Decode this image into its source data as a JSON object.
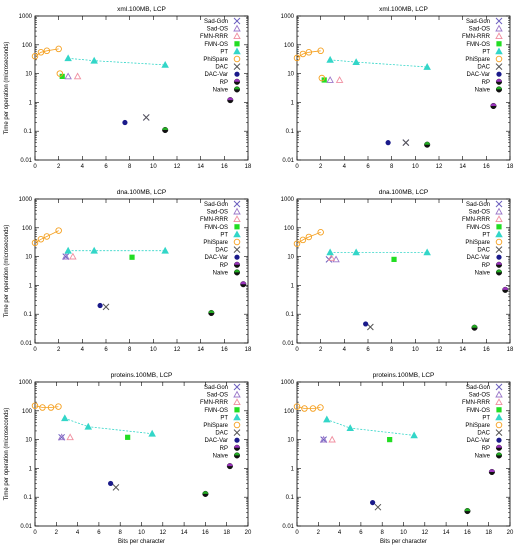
{
  "styles": {
    "Sad-Gon": {
      "color": "#6b5fbf",
      "marker": "x"
    },
    "Sad-OS": {
      "color": "#9b77c9",
      "marker": "tri-open"
    },
    "FMN-RRR": {
      "color": "#f08fa0",
      "marker": "tri-open"
    },
    "FMN-OS": {
      "color": "#22dd22",
      "marker": "square"
    },
    "PT": {
      "color": "#33d6c8",
      "marker": "tri-filled"
    },
    "PhiSpare": {
      "color": "#f5a020",
      "marker": "circle-open"
    },
    "DAC": {
      "color": "#555555",
      "marker": "x"
    },
    "DAC-Var": {
      "color": "#1a1a8a",
      "marker": "dot"
    },
    "RP": {
      "color": "#9933bb",
      "marker": "half"
    },
    "Naive": {
      "color": "#22aa22",
      "marker": "half"
    }
  },
  "legend": [
    "Sad-Gon",
    "Sad-OS",
    "FMN-RRR",
    "FMN-OS",
    "PT",
    "PhiSpare",
    "DAC",
    "DAC-Var",
    "RP",
    "Naive"
  ],
  "chart_data": [
    {
      "type": "scatter",
      "title": "xml.100MB, LCP",
      "xlabel": "",
      "ylabel": "Time per operation (microseconds)",
      "xlim": [
        0,
        18
      ],
      "xticks": [
        0,
        2,
        4,
        6,
        8,
        10,
        12,
        14,
        16,
        18
      ],
      "ylim": [
        0.01,
        1000
      ],
      "yscale": "log",
      "yticks": [
        0.01,
        0.1,
        1,
        10,
        100,
        1000
      ],
      "series": [
        {
          "name": "Sad-Gon",
          "points": [
            [
              9.4,
              0.3
            ]
          ]
        },
        {
          "name": "Sad-OS",
          "points": [
            [
              2.8,
              8
            ]
          ]
        },
        {
          "name": "FMN-RRR",
          "points": [
            [
              3.6,
              8
            ]
          ]
        },
        {
          "name": "FMN-OS",
          "points": [
            [
              2.3,
              8
            ]
          ]
        },
        {
          "name": "PT",
          "points": [
            [
              2.8,
              34
            ],
            [
              5.0,
              28
            ],
            [
              11.0,
              20
            ]
          ],
          "line": true
        },
        {
          "name": "PhiSpare",
          "points": [
            [
              0.0,
              40
            ],
            [
              0.5,
              55
            ],
            [
              1.0,
              62
            ],
            [
              2.0,
              72
            ],
            [
              2.1,
              10
            ]
          ],
          "line": true
        },
        {
          "name": "DAC",
          "points": [
            [
              9.4,
              0.3
            ]
          ]
        },
        {
          "name": "DAC-Var",
          "points": [
            [
              7.6,
              0.2
            ]
          ]
        },
        {
          "name": "RP",
          "points": [
            [
              16.5,
              1.2
            ]
          ]
        },
        {
          "name": "Naive",
          "points": [
            [
              11.0,
              0.11
            ]
          ]
        }
      ]
    },
    {
      "type": "scatter",
      "title": "xml.100MB, LCP",
      "xlabel": "",
      "ylabel": "",
      "xlim": [
        0,
        18
      ],
      "xticks": [
        0,
        2,
        4,
        6,
        8,
        10,
        12,
        14,
        16,
        18
      ],
      "ylim": [
        0.01,
        1000
      ],
      "yscale": "log",
      "yticks": [
        0.01,
        0.1,
        1,
        10,
        100,
        1000
      ],
      "series": [
        {
          "name": "Sad-Gon",
          "points": [
            [
              9.2,
              0.04
            ]
          ]
        },
        {
          "name": "Sad-OS",
          "points": [
            [
              2.8,
              6
            ]
          ]
        },
        {
          "name": "FMN-RRR",
          "points": [
            [
              3.6,
              6
            ]
          ]
        },
        {
          "name": "FMN-OS",
          "points": [
            [
              2.3,
              6
            ]
          ]
        },
        {
          "name": "PT",
          "points": [
            [
              2.8,
              30
            ],
            [
              5.0,
              25
            ],
            [
              11.0,
              17
            ]
          ],
          "line": true
        },
        {
          "name": "PhiSpare",
          "points": [
            [
              0.0,
              35
            ],
            [
              0.5,
              48
            ],
            [
              1.0,
              55
            ],
            [
              2.0,
              62
            ],
            [
              2.1,
              7
            ]
          ],
          "line": true
        },
        {
          "name": "DAC",
          "points": [
            [
              9.2,
              0.04
            ]
          ]
        },
        {
          "name": "DAC-Var",
          "points": [
            [
              7.7,
              0.04
            ]
          ]
        },
        {
          "name": "RP",
          "points": [
            [
              16.6,
              0.75
            ]
          ]
        },
        {
          "name": "Naive",
          "points": [
            [
              11.0,
              0.034
            ]
          ]
        }
      ]
    },
    {
      "type": "scatter",
      "title": "dna.100MB, LCP",
      "xlabel": "",
      "ylabel": "Time per operation (microseconds)",
      "xlim": [
        0,
        18
      ],
      "xticks": [
        0,
        2,
        4,
        6,
        8,
        10,
        12,
        14,
        16,
        18
      ],
      "ylim": [
        0.01,
        1000
      ],
      "yscale": "log",
      "yticks": [
        0.01,
        0.1,
        1,
        10,
        100,
        1000
      ],
      "series": [
        {
          "name": "Sad-Gon",
          "points": [
            [
              2.6,
              10
            ]
          ]
        },
        {
          "name": "Sad-OS",
          "points": [
            [
              2.6,
              10
            ]
          ]
        },
        {
          "name": "FMN-RRR",
          "points": [
            [
              3.2,
              10
            ]
          ]
        },
        {
          "name": "FMN-OS",
          "points": [
            [
              8.2,
              9.5
            ]
          ]
        },
        {
          "name": "PT",
          "points": [
            [
              2.8,
              16
            ],
            [
              5.0,
              16
            ],
            [
              11.0,
              16
            ]
          ],
          "line": true
        },
        {
          "name": "PhiSpare",
          "points": [
            [
              0.0,
              30
            ],
            [
              0.5,
              40
            ],
            [
              1.0,
              50
            ],
            [
              2.0,
              80
            ]
          ],
          "line": true
        },
        {
          "name": "DAC",
          "points": [
            [
              6.0,
              0.18
            ]
          ]
        },
        {
          "name": "DAC-Var",
          "points": [
            [
              5.5,
              0.2
            ]
          ]
        },
        {
          "name": "RP",
          "points": [
            [
              17.6,
              1.1
            ]
          ]
        },
        {
          "name": "Naive",
          "points": [
            [
              14.9,
              0.11
            ]
          ]
        }
      ]
    },
    {
      "type": "scatter",
      "title": "dna.100MB, LCP",
      "xlabel": "",
      "ylabel": "",
      "xlim": [
        0,
        18
      ],
      "xticks": [
        0,
        2,
        4,
        6,
        8,
        10,
        12,
        14,
        16,
        18
      ],
      "ylim": [
        0.01,
        1000
      ],
      "yscale": "log",
      "yticks": [
        0.01,
        0.1,
        1,
        10,
        100,
        1000
      ],
      "series": [
        {
          "name": "Sad-Gon",
          "points": [
            [
              2.7,
              8
            ]
          ]
        },
        {
          "name": "Sad-OS",
          "points": [
            [
              3.3,
              8
            ]
          ]
        },
        {
          "name": "FMN-RRR",
          "points": [
            [
              2.9,
              9
            ]
          ]
        },
        {
          "name": "FMN-OS",
          "points": [
            [
              8.2,
              8
            ]
          ]
        },
        {
          "name": "PT",
          "points": [
            [
              2.8,
              14
            ],
            [
              5.0,
              14
            ],
            [
              11.0,
              14
            ]
          ],
          "line": true
        },
        {
          "name": "PhiSpare",
          "points": [
            [
              0.0,
              28
            ],
            [
              0.5,
              38
            ],
            [
              1.0,
              48
            ],
            [
              2.0,
              70
            ]
          ],
          "line": true
        },
        {
          "name": "DAC",
          "points": [
            [
              6.2,
              0.036
            ]
          ]
        },
        {
          "name": "DAC-Var",
          "points": [
            [
              5.8,
              0.046
            ]
          ]
        },
        {
          "name": "RP",
          "points": [
            [
              17.6,
              0.7
            ]
          ]
        },
        {
          "name": "Naive",
          "points": [
            [
              15.0,
              0.034
            ]
          ]
        }
      ]
    },
    {
      "type": "scatter",
      "title": "proteins.100MB, LCP",
      "xlabel": "Bits per character",
      "ylabel": "Time per operation (microseconds)",
      "xlim": [
        0,
        20
      ],
      "xticks": [
        0,
        2,
        4,
        6,
        8,
        10,
        12,
        14,
        16,
        18,
        20
      ],
      "ylim": [
        0.01,
        1000
      ],
      "yscale": "log",
      "yticks": [
        0.01,
        0.1,
        1,
        10,
        100,
        1000
      ],
      "series": [
        {
          "name": "Sad-Gon",
          "points": [
            [
              2.5,
              12
            ]
          ]
        },
        {
          "name": "Sad-OS",
          "points": [
            [
              2.5,
              12
            ]
          ]
        },
        {
          "name": "FMN-RRR",
          "points": [
            [
              3.3,
              12
            ]
          ]
        },
        {
          "name": "FMN-OS",
          "points": [
            [
              8.7,
              12
            ]
          ]
        },
        {
          "name": "PT",
          "points": [
            [
              2.8,
              55
            ],
            [
              5.0,
              28
            ],
            [
              11.0,
              16
            ]
          ],
          "line": true
        },
        {
          "name": "PhiSpare",
          "points": [
            [
              0.0,
              150
            ],
            [
              0.7,
              130
            ],
            [
              1.5,
              130
            ],
            [
              2.2,
              140
            ]
          ],
          "line": true
        },
        {
          "name": "DAC",
          "points": [
            [
              7.6,
              0.22
            ]
          ]
        },
        {
          "name": "DAC-Var",
          "points": [
            [
              7.1,
              0.3
            ]
          ]
        },
        {
          "name": "RP",
          "points": [
            [
              18.3,
              1.2
            ]
          ]
        },
        {
          "name": "Naive",
          "points": [
            [
              16.0,
              0.13
            ]
          ]
        }
      ]
    },
    {
      "type": "scatter",
      "title": "proteins.100MB, LCP",
      "xlabel": "Bits per character",
      "ylabel": "",
      "xlim": [
        0,
        20
      ],
      "xticks": [
        0,
        2,
        4,
        6,
        8,
        10,
        12,
        14,
        16,
        18,
        20
      ],
      "ylim": [
        0.01,
        1000
      ],
      "yscale": "log",
      "yticks": [
        0.01,
        0.1,
        1,
        10,
        100,
        1000
      ],
      "series": [
        {
          "name": "Sad-Gon",
          "points": [
            [
              2.5,
              10
            ]
          ]
        },
        {
          "name": "Sad-OS",
          "points": [
            [
              2.5,
              10
            ]
          ]
        },
        {
          "name": "FMN-RRR",
          "points": [
            [
              3.3,
              10
            ]
          ]
        },
        {
          "name": "FMN-OS",
          "points": [
            [
              8.7,
              10
            ]
          ]
        },
        {
          "name": "PT",
          "points": [
            [
              2.8,
              50
            ],
            [
              5.0,
              25
            ],
            [
              11.0,
              14
            ]
          ],
          "line": true
        },
        {
          "name": "PhiSpare",
          "points": [
            [
              0.0,
              140
            ],
            [
              0.7,
              120
            ],
            [
              1.5,
              120
            ],
            [
              2.2,
              130
            ]
          ],
          "line": true
        },
        {
          "name": "DAC",
          "points": [
            [
              7.6,
              0.045
            ]
          ]
        },
        {
          "name": "DAC-Var",
          "points": [
            [
              7.1,
              0.065
            ]
          ]
        },
        {
          "name": "RP",
          "points": [
            [
              18.3,
              0.75
            ]
          ]
        },
        {
          "name": "Naive",
          "points": [
            [
              16.0,
              0.033
            ]
          ]
        }
      ]
    }
  ]
}
